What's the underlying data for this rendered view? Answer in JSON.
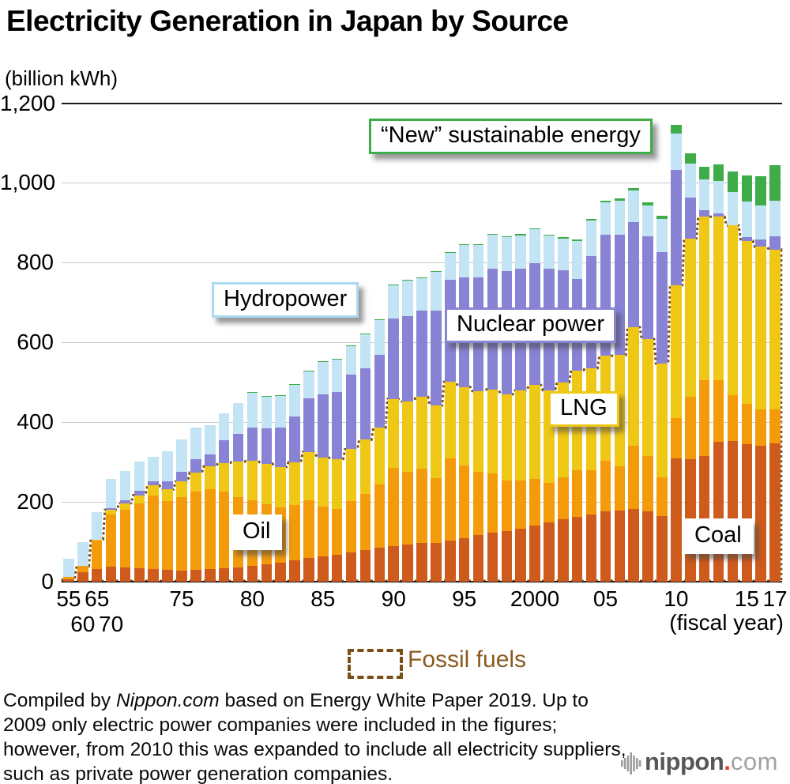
{
  "title": "Electricity Generation in Japan by Source",
  "unit_label": "(billion kWh)",
  "annotations": {
    "new_energy": "“New” sustainable energy",
    "hydropower": "Hydropower",
    "nuclear": "Nuclear power",
    "lng": "LNG",
    "oil": "Oil",
    "coal": "Coal"
  },
  "fossil_legend": {
    "label": "Fossil fuels",
    "outline_color": "#7a4f17",
    "text_color": "#8a5a1e"
  },
  "x_axis": {
    "fiscal_label": "(fiscal year)",
    "ticks": [
      {
        "label": "55",
        "bar_index": 0,
        "row": 1
      },
      {
        "label": "60",
        "bar_index": 1,
        "row": 2
      },
      {
        "label": "65",
        "bar_index": 2,
        "row": 1
      },
      {
        "label": "70",
        "bar_index": 3,
        "row": 2
      },
      {
        "label": "75",
        "bar_index": 8,
        "row": 1
      },
      {
        "label": "80",
        "bar_index": 13,
        "row": 1
      },
      {
        "label": "85",
        "bar_index": 18,
        "row": 1
      },
      {
        "label": "90",
        "bar_index": 23,
        "row": 1
      },
      {
        "label": "95",
        "bar_index": 28,
        "row": 1
      },
      {
        "label": "2000",
        "bar_index": 33,
        "row": 1
      },
      {
        "label": "05",
        "bar_index": 38,
        "row": 1
      },
      {
        "label": "10",
        "bar_index": 43,
        "row": 1
      },
      {
        "label": "15",
        "bar_index": 48,
        "row": 1
      },
      {
        "label": "17",
        "bar_index": 50,
        "row": 1
      }
    ]
  },
  "y_axis": {
    "ticks": [
      {
        "label": "0",
        "value": 0
      },
      {
        "label": "200",
        "value": 200
      },
      {
        "label": "400",
        "value": 400
      },
      {
        "label": "600",
        "value": 600
      },
      {
        "label": "800",
        "value": 800
      },
      {
        "label": "1,000",
        "value": 1000
      },
      {
        "label": "1,200",
        "value": 1200
      }
    ],
    "max": 1200
  },
  "chart_data": {
    "type": "bar",
    "stacked": true,
    "title": "Electricity Generation in Japan by Source",
    "ylabel": "(billion kWh)",
    "xlabel": "(fiscal year)",
    "ylim": [
      0,
      1200
    ],
    "grid": true,
    "note": "values in billion kWh; bars are fiscal years 1955, 1960, 1965, then annual 1970-2017",
    "categories": [
      1955,
      1960,
      1965,
      1970,
      1971,
      1972,
      1973,
      1974,
      1975,
      1976,
      1977,
      1978,
      1979,
      1980,
      1981,
      1982,
      1983,
      1984,
      1985,
      1986,
      1987,
      1988,
      1989,
      1990,
      1991,
      1992,
      1993,
      1994,
      1995,
      1996,
      1997,
      1998,
      1999,
      2000,
      2001,
      2002,
      2003,
      2004,
      2005,
      2006,
      2007,
      2008,
      2009,
      2010,
      2011,
      2012,
      2013,
      2014,
      2015,
      2016,
      2017
    ],
    "series": [
      {
        "name": "Coal",
        "color": "#ce5a1c",
        "values": [
          6,
          24,
          32,
          38,
          36,
          34,
          32,
          30,
          28,
          30,
          31,
          33,
          35,
          40,
          44,
          48,
          54,
          60,
          64,
          68,
          74,
          80,
          86,
          90,
          94,
          97,
          98,
          104,
          110,
          116,
          122,
          126,
          132,
          140,
          148,
          156,
          162,
          168,
          176,
          178,
          182,
          176,
          164,
          310,
          307,
          315,
          350,
          352,
          345,
          340,
          347
        ]
      },
      {
        "name": "Oil",
        "color": "#f39b0b",
        "values": [
          5,
          15,
          72,
          130,
          145,
          163,
          185,
          172,
          185,
          196,
          200,
          192,
          178,
          165,
          150,
          138,
          138,
          145,
          125,
          115,
          128,
          140,
          158,
          196,
          182,
          186,
          162,
          205,
          182,
          160,
          150,
          128,
          122,
          118,
          100,
          106,
          118,
          112,
          128,
          112,
          158,
          140,
          98,
          100,
          157,
          190,
          155,
          116,
          100,
          92,
          86
        ]
      },
      {
        "name": "LNG",
        "color": "#efc715",
        "values": [
          0,
          0,
          2,
          12,
          16,
          20,
          24,
          30,
          38,
          48,
          58,
          73,
          88,
          98,
          102,
          102,
          108,
          120,
          122,
          125,
          130,
          136,
          142,
          172,
          176,
          180,
          182,
          192,
          196,
          202,
          210,
          216,
          225,
          235,
          232,
          238,
          250,
          255,
          262,
          278,
          298,
          292,
          285,
          334,
          397,
          410,
          410,
          425,
          410,
          408,
          400
        ]
      },
      {
        "name": "Nuclear power",
        "color": "#8983d6",
        "values": [
          0,
          0,
          0,
          5,
          8,
          10,
          10,
          20,
          25,
          34,
          31,
          56,
          70,
          83,
          88,
          99,
          114,
          134,
          159,
          168,
          188,
          179,
          183,
          202,
          213,
          217,
          238,
          256,
          276,
          286,
          303,
          308,
          305,
          305,
          305,
          280,
          230,
          282,
          305,
          303,
          264,
          258,
          280,
          288,
          102,
          16,
          9,
          0,
          9,
          18,
          33
        ]
      },
      {
        "name": "Hydropower",
        "color": "#c2e4f4",
        "values": [
          47,
          61,
          68,
          73,
          72,
          74,
          63,
          75,
          80,
          78,
          73,
          68,
          76,
          88,
          81,
          80,
          81,
          70,
          82,
          82,
          72,
          86,
          88,
          84,
          92,
          83,
          96,
          68,
          81,
          80,
          85,
          86,
          85,
          85,
          83,
          81,
          94,
          88,
          80,
          85,
          80,
          78,
          82,
          91,
          85,
          77,
          80,
          84,
          90,
          85,
          90
        ]
      },
      {
        "name": "“New” sustainable energy",
        "color": "#3ead49",
        "values": [
          0,
          0,
          0,
          0,
          0,
          0,
          0,
          0,
          0,
          0,
          0,
          0,
          0,
          1,
          1,
          1,
          1,
          1,
          1,
          1,
          1,
          1,
          1,
          1,
          1,
          1,
          2,
          2,
          2,
          2,
          2,
          2,
          3,
          3,
          3,
          3,
          4,
          4,
          5,
          5,
          6,
          7,
          8,
          22,
          26,
          32,
          42,
          52,
          64,
          74,
          88
        ]
      }
    ],
    "fossil_outline": {
      "label": "Fossil fuels",
      "series_included": [
        "Coal",
        "Oil",
        "LNG"
      ],
      "color": "#7a4f17",
      "style": "dashed"
    }
  },
  "footer": {
    "prefix": "Compiled by ",
    "source": "Nippon.com",
    "rest": " based on Energy White Paper 2019. Up to 2009 only electric power companies were included in the figures; however, from 2010 this was expanded to include all electricity suppliers, such as private power generation companies."
  },
  "logo": {
    "name": "nippon",
    "dot": ".",
    "tld": "com",
    "dot_color": "#e8392f"
  }
}
